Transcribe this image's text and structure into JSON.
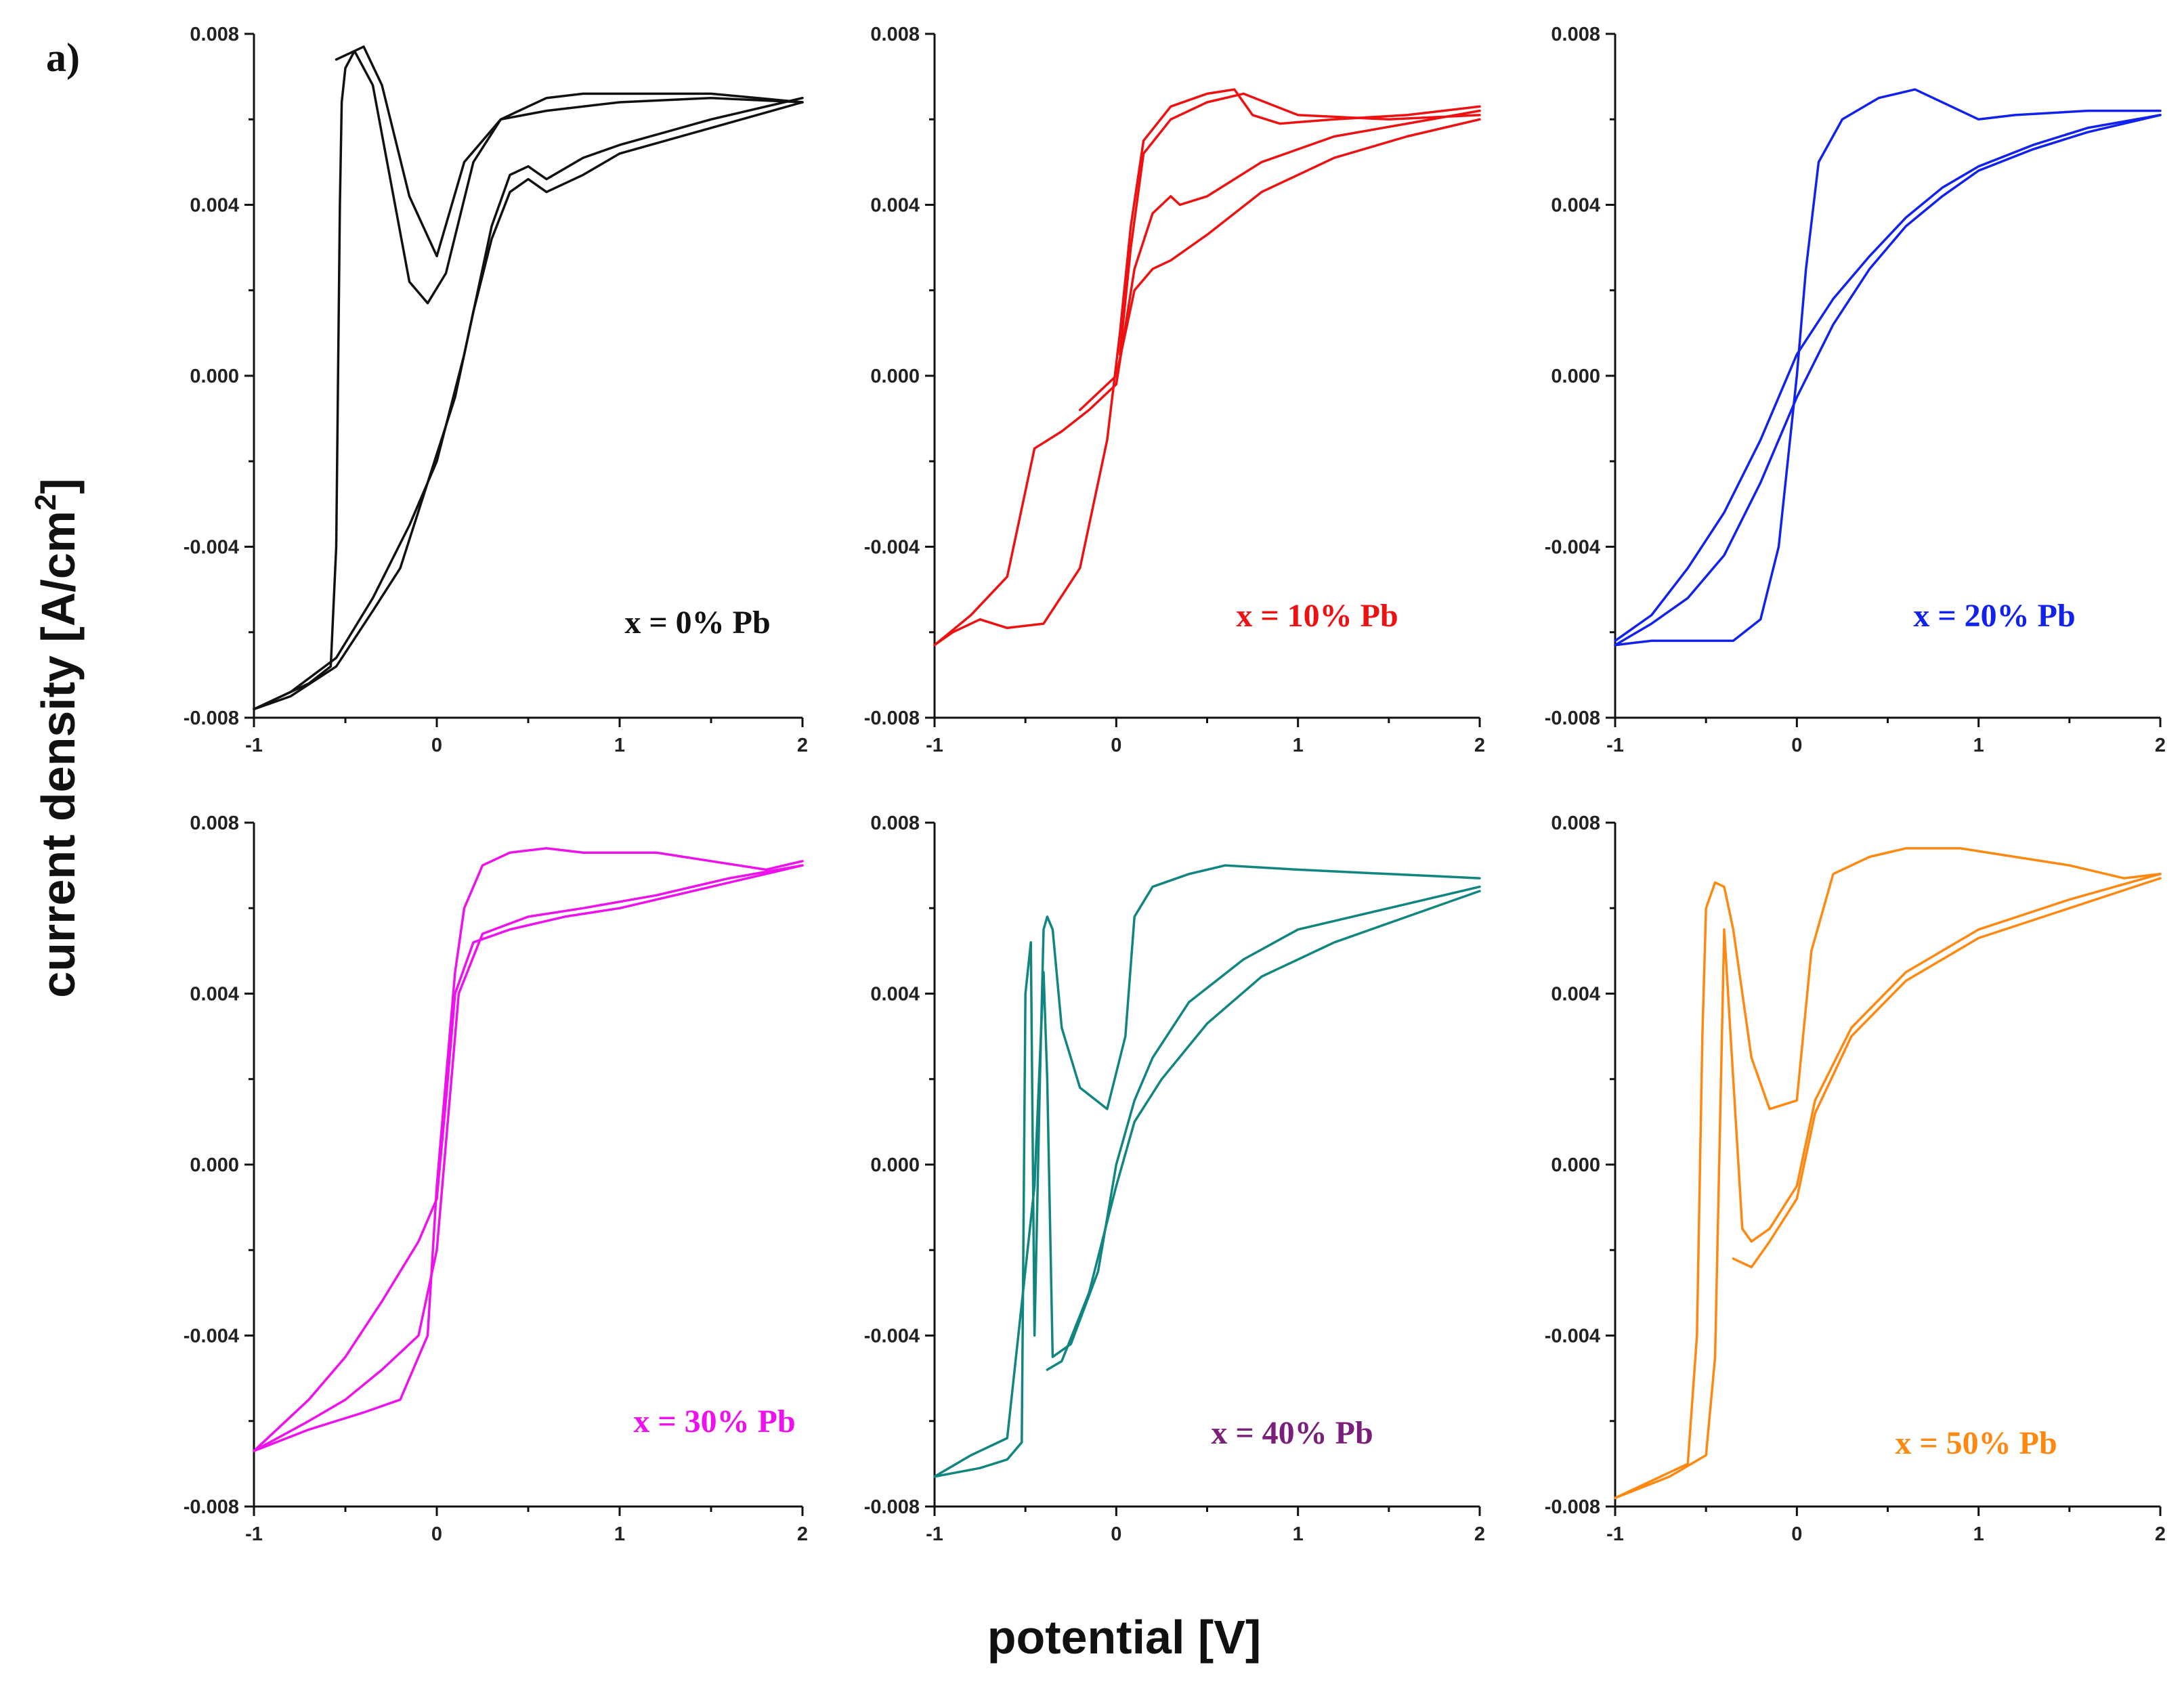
{
  "figure": {
    "letter": "a)",
    "ylabel_main": "current density [A/cm",
    "ylabel_sup": "2",
    "ylabel_end": "]",
    "xlabel": "potential [V]"
  },
  "chart_data": [
    {
      "type": "line",
      "label": "x = 0% Pb",
      "color": "#111111",
      "label_color": "#111111",
      "xlim": [
        -1,
        2
      ],
      "ylim": [
        -0.008,
        0.008
      ],
      "xticks": [
        "-1",
        "0",
        "1",
        "2"
      ],
      "yticks": [
        "-0.008",
        "-0.004",
        "0.000",
        "0.004",
        "0.008"
      ],
      "series": [
        {
          "x": [
            2.0,
            1.5,
            1.0,
            0.6,
            0.35,
            0.15,
            0.0,
            -0.15,
            -0.3,
            -0.4,
            -0.45,
            -0.5,
            -0.52,
            -0.53,
            -0.54,
            -0.55,
            -0.58,
            -0.7,
            -0.85,
            -1.0
          ],
          "y": [
            0.0064,
            0.0065,
            0.0064,
            0.0062,
            0.006,
            0.005,
            0.0028,
            0.0042,
            0.0068,
            0.0077,
            0.0076,
            0.0072,
            0.0064,
            0.004,
            0.0,
            -0.004,
            -0.0068,
            -0.0072,
            -0.0075,
            -0.0078
          ]
        },
        {
          "x": [
            -1.0,
            -0.8,
            -0.55,
            -0.35,
            -0.2,
            -0.05,
            0.1,
            0.2,
            0.3,
            0.4,
            0.5,
            0.6,
            0.8,
            1.0,
            1.5,
            2.0
          ],
          "y": [
            -0.0078,
            -0.0075,
            -0.0068,
            -0.0055,
            -0.0045,
            -0.0025,
            -0.0005,
            0.0015,
            0.0032,
            0.0043,
            0.0046,
            0.0043,
            0.0047,
            0.0052,
            0.0058,
            0.0064
          ]
        },
        {
          "x": [
            2.0,
            1.5,
            1.0,
            0.8,
            0.6,
            0.45,
            0.35,
            0.2,
            0.05,
            -0.05,
            -0.15,
            -0.25,
            -0.35,
            -0.45,
            -0.55
          ],
          "y": [
            0.0064,
            0.0066,
            0.0066,
            0.0066,
            0.0065,
            0.0062,
            0.006,
            0.005,
            0.0024,
            0.0017,
            0.0022,
            0.0045,
            0.0068,
            0.0076,
            0.0074
          ]
        },
        {
          "x": [
            -1.0,
            -0.8,
            -0.55,
            -0.35,
            -0.15,
            0.0,
            0.15,
            0.3,
            0.4,
            0.5,
            0.6,
            0.8,
            1.0,
            1.5,
            2.0
          ],
          "y": [
            -0.0078,
            -0.0074,
            -0.0066,
            -0.0052,
            -0.0035,
            -0.002,
            0.0005,
            0.0035,
            0.0047,
            0.0049,
            0.0046,
            0.0051,
            0.0054,
            0.006,
            0.0065
          ]
        }
      ]
    },
    {
      "type": "line",
      "label": "x = 10% Pb",
      "color": "#ee1111",
      "label_color": "#ee1111",
      "xlim": [
        -1,
        2
      ],
      "ylim": [
        -0.008,
        0.008
      ],
      "xticks": [
        "-1",
        "0",
        "1",
        "2"
      ],
      "yticks": [
        "-0.008",
        "-0.004",
        "0.000",
        "0.004",
        "0.008"
      ],
      "series": [
        {
          "x": [
            2.0,
            1.6,
            1.2,
            0.9,
            0.75,
            0.65,
            0.5,
            0.3,
            0.15,
            0.08,
            0.02,
            -0.05,
            -0.2,
            -0.4,
            -0.6,
            -0.75,
            -0.9,
            -1.0
          ],
          "y": [
            0.0063,
            0.0061,
            0.006,
            0.0059,
            0.0061,
            0.0067,
            0.0066,
            0.0063,
            0.0055,
            0.0035,
            0.001,
            -0.0015,
            -0.0045,
            -0.0058,
            -0.0059,
            -0.0057,
            -0.006,
            -0.0063
          ]
        },
        {
          "x": [
            -1.0,
            -0.8,
            -0.6,
            -0.45,
            -0.3,
            -0.15,
            0.0,
            0.1,
            0.2,
            0.3,
            0.35,
            0.5,
            0.8,
            1.2,
            1.6,
            2.0
          ],
          "y": [
            -0.0063,
            -0.0056,
            -0.0047,
            -0.0017,
            -0.0013,
            -0.0008,
            -0.0002,
            0.0025,
            0.0038,
            0.0042,
            0.004,
            0.0042,
            0.005,
            0.0056,
            0.0059,
            0.0062
          ]
        },
        {
          "x": [
            2.0,
            1.5,
            1.0,
            0.7,
            0.5,
            0.3,
            0.15,
            0.08,
            0.02
          ],
          "y": [
            0.0061,
            0.006,
            0.0061,
            0.0066,
            0.0064,
            0.006,
            0.0052,
            0.003,
            0.0005
          ]
        },
        {
          "x": [
            -0.2,
            0.0,
            0.1,
            0.2,
            0.3,
            0.5,
            0.8,
            1.2,
            1.6,
            2.0
          ],
          "y": [
            -0.0008,
            0.0,
            0.002,
            0.0025,
            0.0027,
            0.0033,
            0.0043,
            0.0051,
            0.0056,
            0.006
          ]
        }
      ]
    },
    {
      "type": "line",
      "label": "x = 20% Pb",
      "color": "#1122ee",
      "label_color": "#1122ee",
      "xlim": [
        -1,
        2
      ],
      "ylim": [
        -0.008,
        0.008
      ],
      "xticks": [
        "-1",
        "0",
        "1",
        "2"
      ],
      "yticks": [
        "-0.008",
        "-0.004",
        "0.000",
        "0.004",
        "0.008"
      ],
      "series": [
        {
          "x": [
            2.0,
            1.6,
            1.2,
            1.0,
            0.85,
            0.65,
            0.45,
            0.25,
            0.12,
            0.05,
            0.0,
            -0.05,
            -0.1,
            -0.2,
            -0.35,
            -0.6,
            -0.8,
            -1.0
          ],
          "y": [
            0.0062,
            0.0062,
            0.0061,
            0.006,
            0.0063,
            0.0067,
            0.0065,
            0.006,
            0.005,
            0.0025,
            0.0,
            -0.002,
            -0.004,
            -0.0057,
            -0.0062,
            -0.0062,
            -0.0062,
            -0.0063
          ]
        },
        {
          "x": [
            -1.0,
            -0.8,
            -0.6,
            -0.4,
            -0.2,
            0.0,
            0.2,
            0.4,
            0.6,
            0.8,
            1.0,
            1.3,
            1.6,
            2.0
          ],
          "y": [
            -0.0063,
            -0.0058,
            -0.0052,
            -0.0042,
            -0.0025,
            -0.0005,
            0.0012,
            0.0025,
            0.0035,
            0.0042,
            0.0048,
            0.0053,
            0.0057,
            0.0061
          ]
        },
        {
          "x": [
            -1.0,
            -0.8,
            -0.6,
            -0.4,
            -0.2,
            0.0,
            0.2,
            0.4,
            0.6,
            0.8,
            1.0,
            1.3,
            1.6,
            2.0
          ],
          "y": [
            -0.0062,
            -0.0056,
            -0.0045,
            -0.0032,
            -0.0015,
            0.0005,
            0.0018,
            0.0028,
            0.0037,
            0.0044,
            0.0049,
            0.0054,
            0.0058,
            0.0061
          ]
        }
      ]
    },
    {
      "type": "line",
      "label": "x = 30% Pb",
      "color": "#ee11ee",
      "label_color": "#ee11ee",
      "xlim": [
        -1,
        2
      ],
      "ylim": [
        -0.008,
        0.008
      ],
      "xticks": [
        "-1",
        "0",
        "1",
        "2"
      ],
      "yticks": [
        "-0.008",
        "-0.004",
        "0.000",
        "0.004",
        "0.008"
      ],
      "series": [
        {
          "x": [
            2.0,
            1.8,
            1.5,
            1.2,
            0.8,
            0.6,
            0.4,
            0.25,
            0.15,
            0.1,
            0.05,
            0.0,
            -0.05,
            -0.2,
            -0.4,
            -0.7,
            -1.0
          ],
          "y": [
            0.0071,
            0.0069,
            0.0071,
            0.0073,
            0.0073,
            0.0074,
            0.0073,
            0.007,
            0.006,
            0.0045,
            0.002,
            -0.0005,
            -0.004,
            -0.0055,
            -0.0058,
            -0.0062,
            -0.0067
          ]
        },
        {
          "x": [
            -1.0,
            -0.7,
            -0.5,
            -0.3,
            -0.1,
            0.0,
            0.05,
            0.1,
            0.2,
            0.4,
            0.7,
            1.0,
            1.5,
            2.0
          ],
          "y": [
            -0.0067,
            -0.0055,
            -0.0045,
            -0.0032,
            -0.0018,
            -0.0008,
            0.0015,
            0.004,
            0.0052,
            0.0055,
            0.0058,
            0.006,
            0.0065,
            0.007
          ]
        },
        {
          "x": [
            -1.0,
            -0.7,
            -0.5,
            -0.3,
            -0.1,
            0.0,
            0.05,
            0.12,
            0.25,
            0.5,
            0.8,
            1.2,
            1.6,
            2.0
          ],
          "y": [
            -0.0067,
            -0.006,
            -0.0055,
            -0.0048,
            -0.004,
            -0.002,
            0.0005,
            0.004,
            0.0054,
            0.0058,
            0.006,
            0.0063,
            0.0067,
            0.007
          ]
        }
      ]
    },
    {
      "type": "line",
      "label": "x = 40% Pb",
      "color": "#11857f",
      "label_color": "#7a1f7a",
      "xlim": [
        -1,
        2
      ],
      "ylim": [
        -0.008,
        0.008
      ],
      "xticks": [
        "-1",
        "0",
        "1",
        "2"
      ],
      "yticks": [
        "-0.008",
        "-0.004",
        "0.000",
        "0.004",
        "0.008"
      ],
      "series": [
        {
          "x": [
            2.0,
            1.5,
            1.0,
            0.6,
            0.4,
            0.2,
            0.1,
            0.05,
            -0.05,
            -0.2,
            -0.3,
            -0.35,
            -0.38,
            -0.4,
            -0.42,
            -0.45,
            -0.47,
            -0.5,
            -0.52,
            -0.6,
            -0.75,
            -1.0
          ],
          "y": [
            0.0067,
            0.0068,
            0.0069,
            0.007,
            0.0068,
            0.0065,
            0.0058,
            0.003,
            0.0013,
            0.0018,
            0.0032,
            0.0055,
            0.0058,
            0.0055,
            0.002,
            -0.004,
            0.0052,
            0.004,
            -0.0065,
            -0.0069,
            -0.0071,
            -0.0073
          ]
        },
        {
          "x": [
            -1.0,
            -0.8,
            -0.6,
            -0.45,
            -0.4,
            -0.38,
            -0.35,
            -0.25,
            -0.1,
            0.0,
            0.1,
            0.2,
            0.4,
            0.7,
            1.0,
            1.5,
            2.0
          ],
          "y": [
            -0.0073,
            -0.0068,
            -0.0064,
            -0.0005,
            0.0045,
            0.002,
            -0.0045,
            -0.0042,
            -0.0025,
            0.0,
            0.0015,
            0.0025,
            0.0038,
            0.0048,
            0.0055,
            0.006,
            0.0065
          ]
        },
        {
          "x": [
            -0.38,
            -0.3,
            -0.15,
            0.0,
            0.1,
            0.25,
            0.5,
            0.8,
            1.2,
            1.6,
            2.0
          ],
          "y": [
            -0.0048,
            -0.0046,
            -0.003,
            -0.0005,
            0.001,
            0.002,
            0.0033,
            0.0044,
            0.0052,
            0.0058,
            0.0064
          ]
        }
      ]
    },
    {
      "type": "line",
      "label": "x = 50% Pb",
      "color": "#ff8811",
      "label_color": "#ff8811",
      "xlim": [
        -1,
        2
      ],
      "ylim": [
        -0.008,
        0.008
      ],
      "xticks": [
        "-1",
        "0",
        "1",
        "2"
      ],
      "yticks": [
        "-0.008",
        "-0.004",
        "0.000",
        "0.004",
        "0.008"
      ],
      "series": [
        {
          "x": [
            2.0,
            1.8,
            1.5,
            1.2,
            0.9,
            0.6,
            0.4,
            0.2,
            0.08,
            0.0,
            -0.15,
            -0.25,
            -0.35,
            -0.4,
            -0.45,
            -0.5,
            -0.52,
            -0.55,
            -0.6,
            -0.75,
            -1.0
          ],
          "y": [
            0.0068,
            0.0067,
            0.007,
            0.0072,
            0.0074,
            0.0074,
            0.0072,
            0.0068,
            0.005,
            0.0015,
            0.0013,
            0.0025,
            0.0055,
            0.0065,
            0.0066,
            0.006,
            0.003,
            -0.004,
            -0.007,
            -0.0073,
            -0.0078
          ]
        },
        {
          "x": [
            -1.0,
            -0.7,
            -0.5,
            -0.45,
            -0.4,
            -0.35,
            -0.3,
            -0.25,
            -0.15,
            0.0,
            0.1,
            0.3,
            0.6,
            1.0,
            1.5,
            2.0
          ],
          "y": [
            -0.0078,
            -0.0073,
            -0.0068,
            -0.0045,
            0.0055,
            0.002,
            -0.0015,
            -0.0018,
            -0.0015,
            -0.0005,
            0.0015,
            0.0032,
            0.0045,
            0.0055,
            0.0062,
            0.0068
          ]
        },
        {
          "x": [
            -0.35,
            -0.25,
            -0.15,
            0.0,
            0.1,
            0.3,
            0.6,
            1.0,
            1.5,
            2.0
          ],
          "y": [
            -0.0022,
            -0.0024,
            -0.0018,
            -0.0008,
            0.0012,
            0.003,
            0.0043,
            0.0053,
            0.006,
            0.0067
          ]
        }
      ]
    }
  ]
}
